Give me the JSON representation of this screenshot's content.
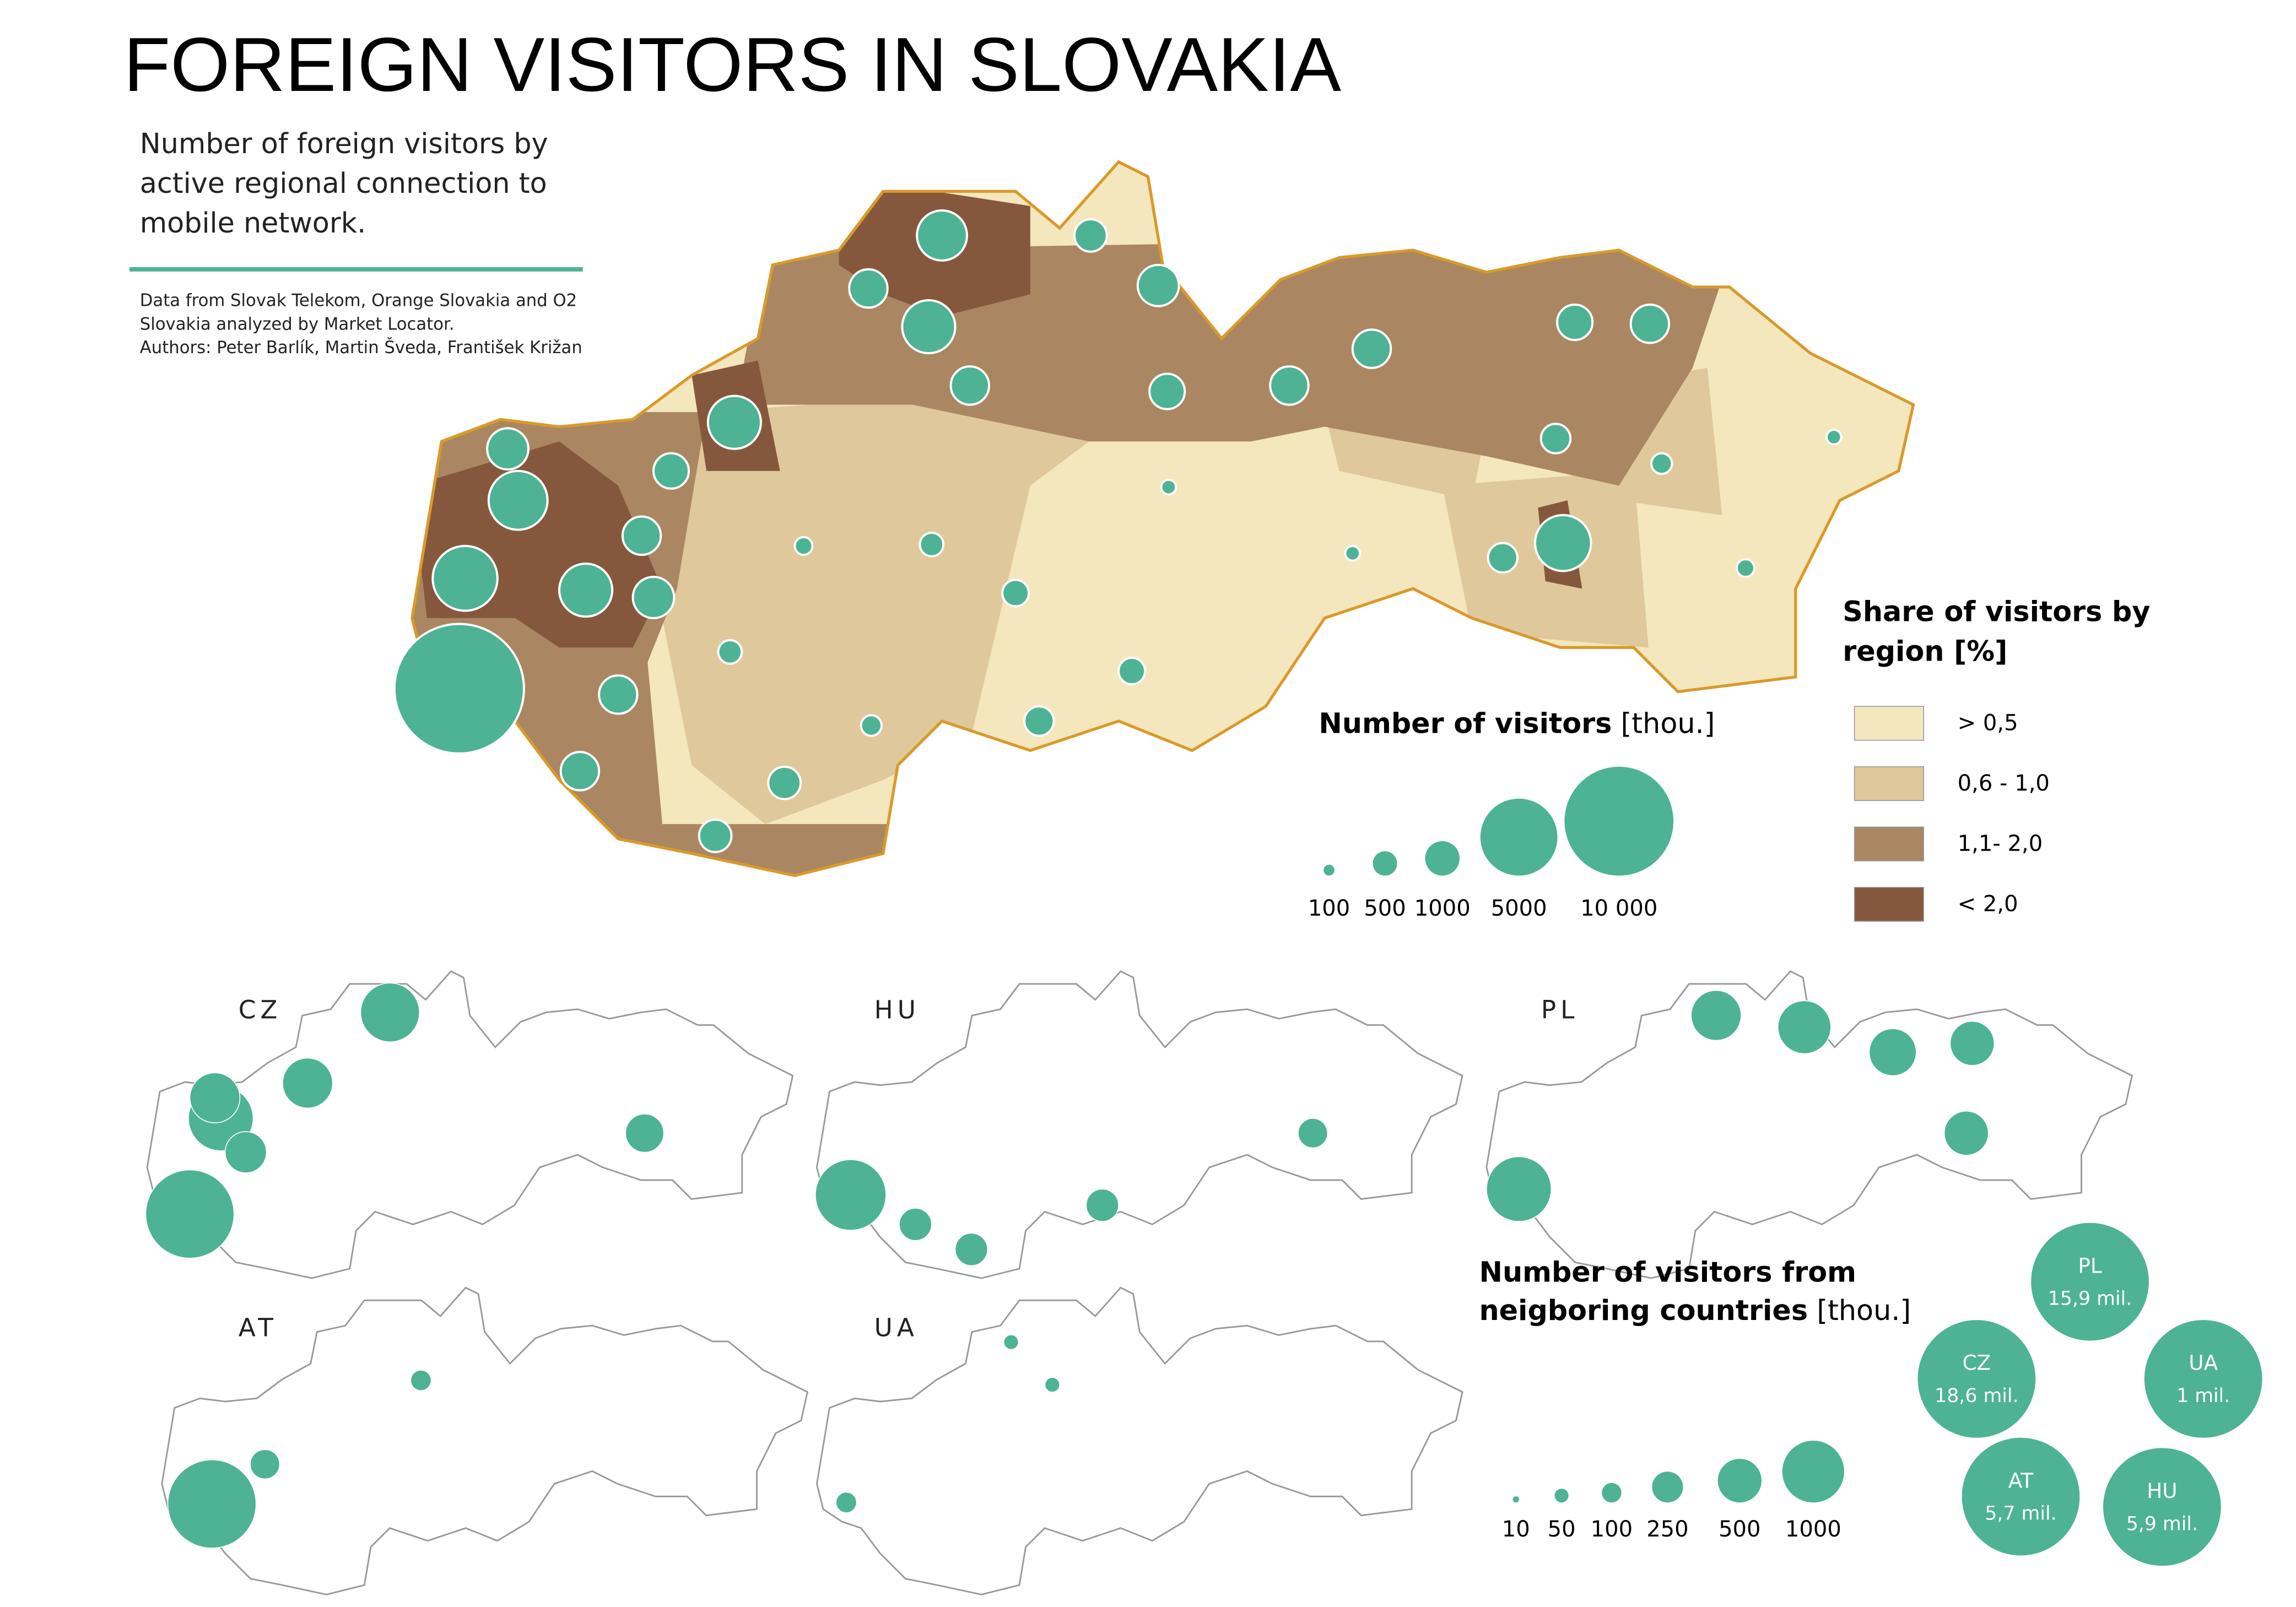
{
  "header": {
    "title": "FOREIGN VISITORS IN SLOVAKIA",
    "subtitle": [
      "Number of foreign visitors by",
      "active regional connection to",
      "mobile network."
    ],
    "source": [
      "Data from Slovak Telekom, Orange Slovakia and O2",
      "Slovakia analyzed by Market Locator.",
      "Authors: Peter Barlík, Martin Šveda, František Križan"
    ]
  },
  "share_legend": {
    "title": [
      "Share of visitors by",
      "region [%]"
    ],
    "items": [
      {
        "label": "> 0,5",
        "color": "#f4e6bd"
      },
      {
        "label": "0,6 - 1,0",
        "color": "#dfc89b"
      },
      {
        "label": "1,1- 2,0",
        "color": "#aa8762"
      },
      {
        "label": "< 2,0",
        "color": "#85583e"
      }
    ]
  },
  "visitors_legend": {
    "title": "Number of visitors",
    "unit": "[thou.]",
    "sizes": [
      100,
      500,
      1000,
      5000,
      {
        "value": 10000,
        "label": "10 000"
      }
    ]
  },
  "country_maps": [
    "CZ",
    "HU",
    "PL",
    "AT",
    "UA"
  ],
  "neighbors_legend": {
    "title": [
      "Number of visitors from",
      "neigboring countries"
    ],
    "unit": "[thou.]",
    "sizes": [
      10,
      50,
      100,
      250,
      500,
      1000
    ]
  },
  "countries": [
    {
      "name": "PL",
      "label": "15,9 mil."
    },
    {
      "name": "CZ",
      "label": "18,6 mil."
    },
    {
      "name": "UA",
      "label": "1 mil."
    },
    {
      "name": "AT",
      "label": "5,7 mil."
    },
    {
      "name": "HU",
      "label": "5,9 mil."
    }
  ]
}
